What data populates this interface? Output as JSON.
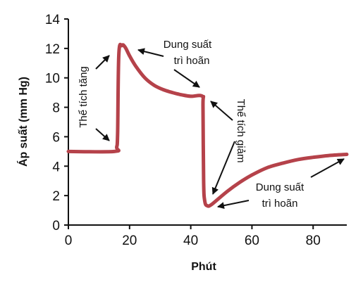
{
  "chart_data": {
    "type": "line",
    "xlabel": "Phút",
    "ylabel": "Áp suất (mm Hg)",
    "xlim": [
      0,
      91
    ],
    "ylim": [
      0,
      14
    ],
    "x_ticks": [
      0,
      20,
      40,
      60,
      80
    ],
    "y_ticks": [
      0,
      2,
      4,
      6,
      8,
      10,
      12,
      14
    ],
    "grid": false,
    "line_color": "#b5424a",
    "series": [
      {
        "x": [
          0,
          15,
          15.8,
          16.1,
          16.5,
          17.5,
          18.5,
          20,
          22,
          25,
          28,
          31,
          34,
          37,
          40,
          43.8,
          44,
          44.2,
          44.6,
          45.5,
          46.5,
          48,
          52,
          56,
          60,
          65,
          70,
          75,
          80,
          85,
          91
        ],
        "y": [
          5,
          5,
          5.3,
          6.3,
          11.6,
          12.2,
          12.1,
          11.5,
          10.8,
          10.0,
          9.5,
          9.2,
          9.0,
          8.85,
          8.75,
          8.75,
          8.0,
          3.0,
          1.6,
          1.3,
          1.35,
          1.6,
          2.3,
          2.9,
          3.4,
          3.9,
          4.2,
          4.45,
          4.6,
          4.72,
          4.8
        ]
      }
    ],
    "annotations": [
      {
        "id": "volume-increase",
        "text": "Thể tích tăng"
      },
      {
        "id": "stress-relax-1-line1",
        "text": "Dung suất"
      },
      {
        "id": "stress-relax-1-line2",
        "text": "trì hoãn"
      },
      {
        "id": "volume-decrease",
        "text": "Thể tích giảm"
      },
      {
        "id": "stress-relax-2-line1",
        "text": "Dung suất"
      },
      {
        "id": "stress-relax-2-line2",
        "text": "trì hoãn"
      }
    ]
  }
}
